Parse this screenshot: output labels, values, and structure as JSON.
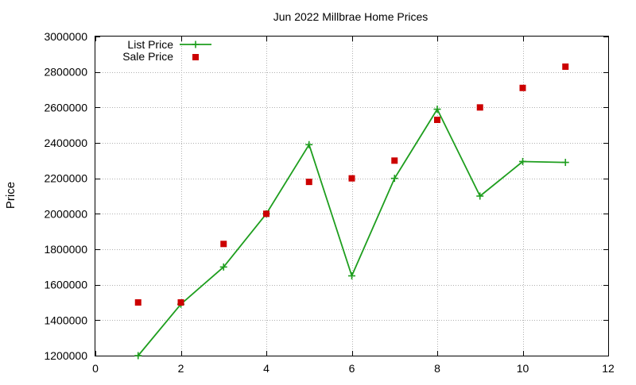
{
  "chart_data": {
    "type": "line",
    "title": "Jun 2022 Millbrae Home Prices",
    "xlabel": "",
    "ylabel": "Price",
    "xlim": [
      0,
      12
    ],
    "ylim": [
      1200000,
      3000000
    ],
    "xticks": [
      "0",
      "2",
      "4",
      "6",
      "8",
      "10",
      "12"
    ],
    "yticks": [
      "1200000",
      "1400000",
      "1600000",
      "1800000",
      "2000000",
      "2200000",
      "2400000",
      "2600000",
      "2800000",
      "3000000"
    ],
    "grid": true,
    "legend_position": "top-left",
    "series": [
      {
        "name": "List Price",
        "style": "line-with-plus-markers",
        "color": "#1e9e1e",
        "x": [
          1,
          2,
          3,
          4,
          5,
          6,
          7,
          8,
          9,
          10,
          11
        ],
        "y": [
          1200000,
          1490000,
          1700000,
          2000000,
          2390000,
          1650000,
          2200000,
          2590000,
          2100000,
          2295000,
          2290000
        ]
      },
      {
        "name": "Sale Price",
        "style": "square-markers",
        "color": "#cc0000",
        "x": [
          1,
          2,
          3,
          4,
          5,
          6,
          7,
          8,
          9,
          10,
          11
        ],
        "y": [
          1500000,
          1500000,
          1830000,
          2000000,
          2180000,
          2200000,
          2300000,
          2530000,
          2600000,
          2710000,
          2830000
        ]
      }
    ]
  }
}
